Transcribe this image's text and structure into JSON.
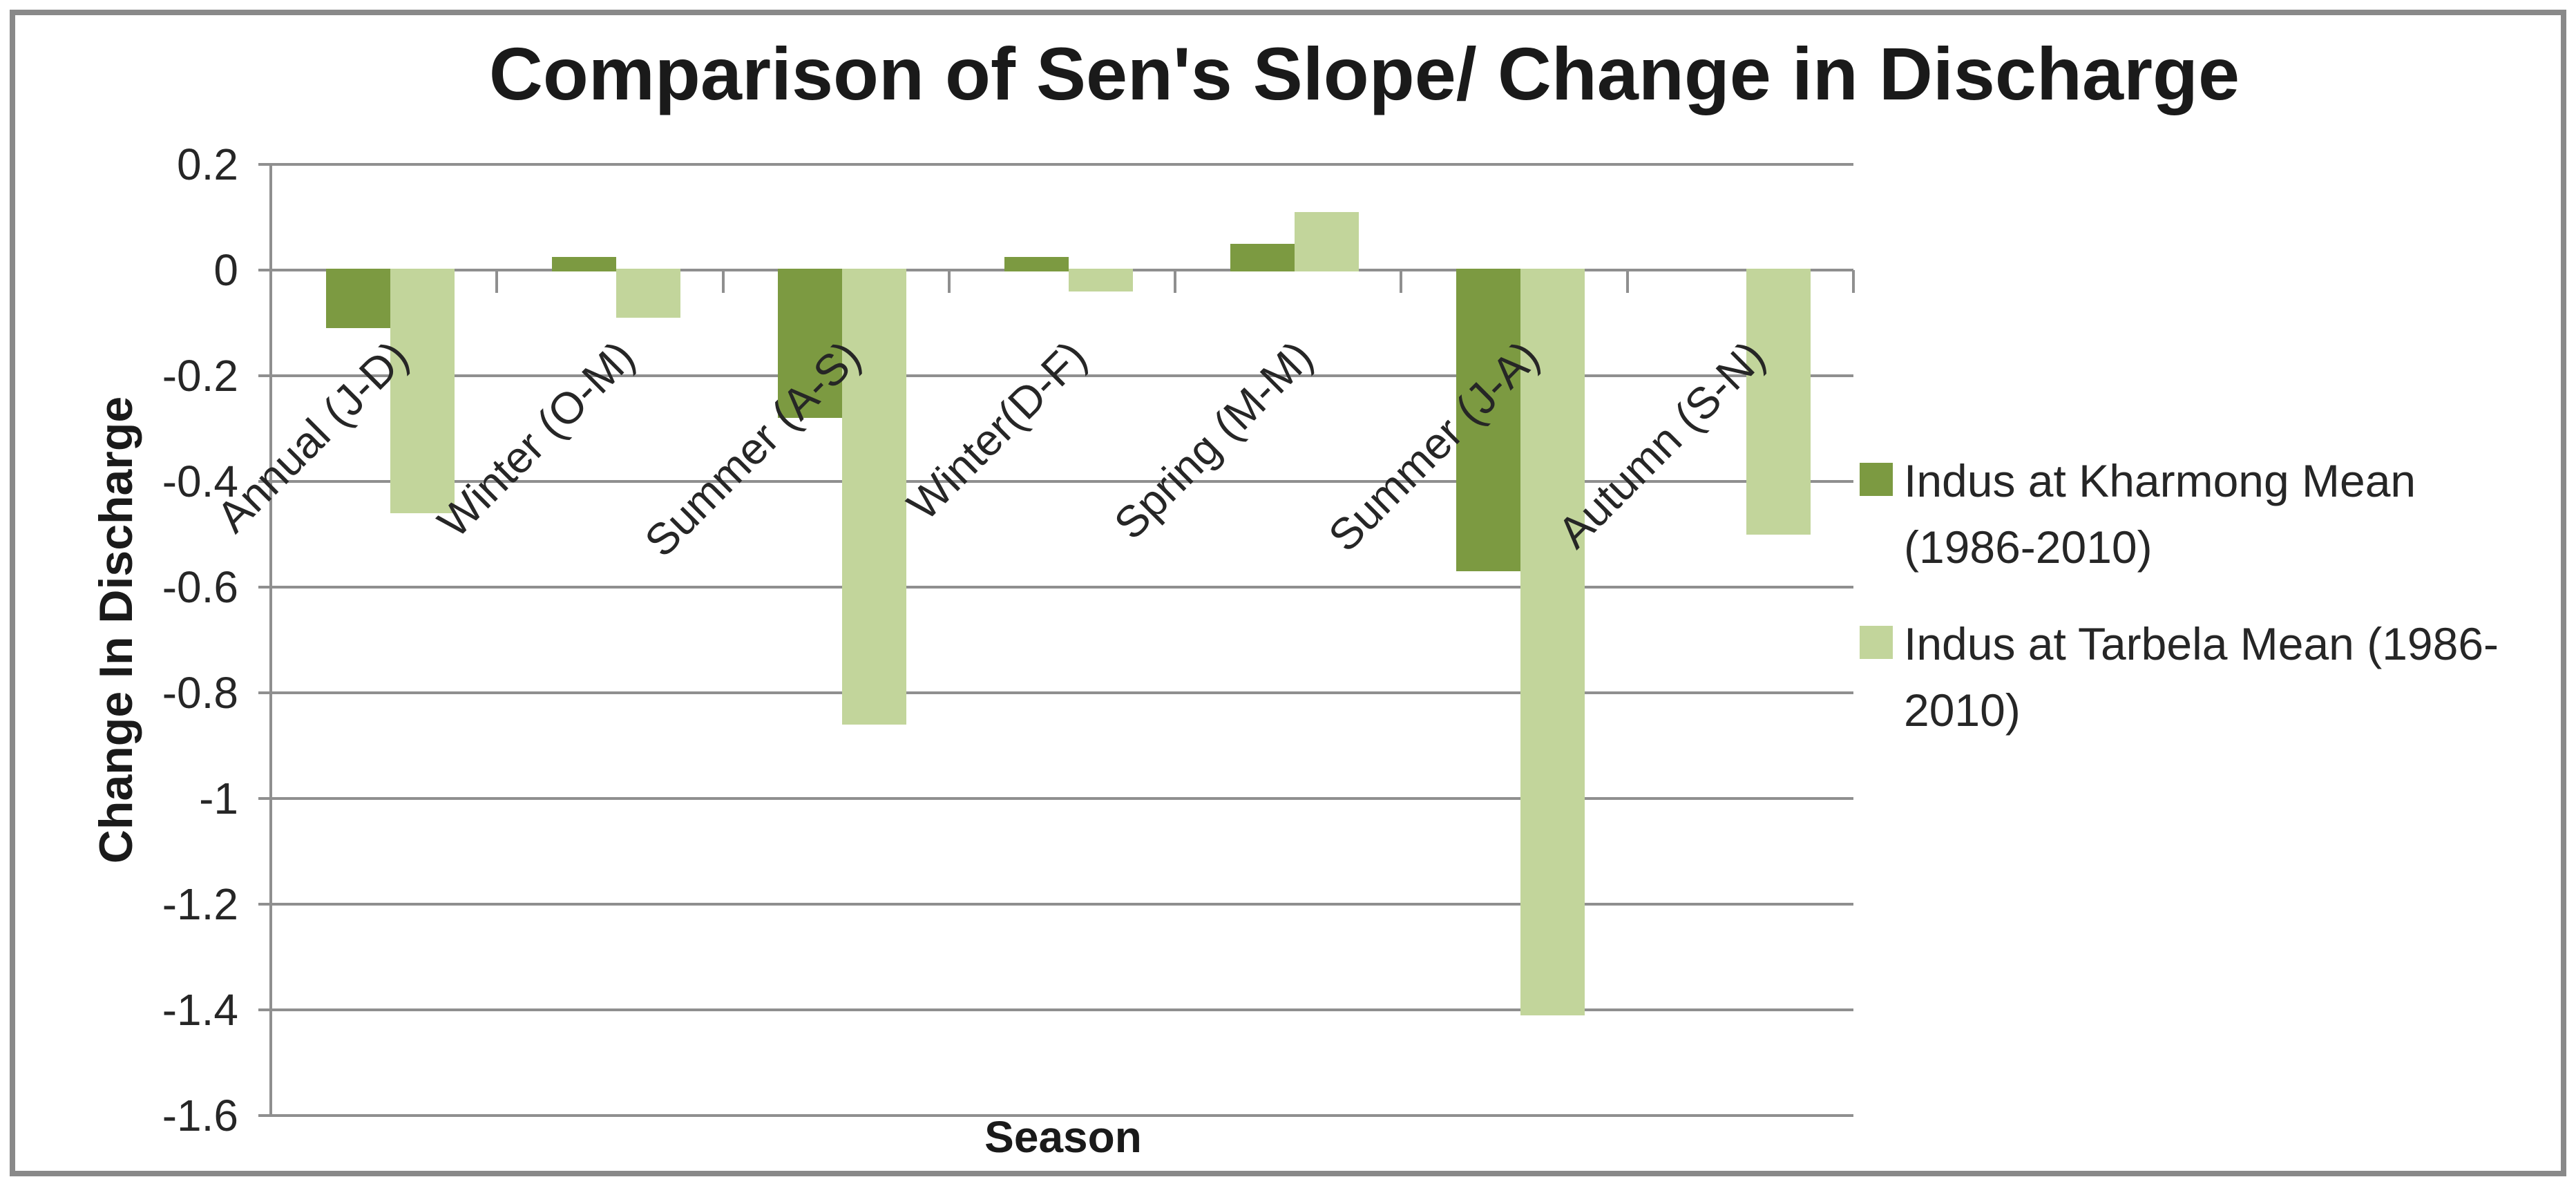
{
  "chart_data": {
    "type": "bar",
    "title": "Comparison of Sen's Slope/ Change in Discharge",
    "xlabel": "Season",
    "ylabel": "Change In Discharge",
    "categories": [
      "Annual (J-D)",
      "Winter (O-M)",
      "Summer (A-S)",
      "Winter(D-F)",
      "Spring (M-M)",
      "Summer (J-A)",
      "Autumn (S-N)"
    ],
    "series": [
      {
        "name": "Indus at Kharmong Mean (1986-2010)",
        "short_name": "kharmong",
        "color": "#7C9A41",
        "values": [
          -0.11,
          0.025,
          -0.28,
          0.025,
          0.05,
          -0.57,
          0
        ]
      },
      {
        "name": "Indus at Tarbela Mean (1986-2010)",
        "short_name": "tarbela",
        "color": "#C2D59B",
        "values": [
          -0.46,
          -0.09,
          -0.86,
          -0.04,
          0.11,
          -1.41,
          -0.5
        ]
      }
    ],
    "y_ticks": [
      {
        "label": "0.2",
        "value": 0.2
      },
      {
        "label": "0",
        "value": 0
      },
      {
        "label": "-0.2",
        "value": -0.2
      },
      {
        "label": "-0.4",
        "value": -0.4
      },
      {
        "label": "-0.6",
        "value": -0.6
      },
      {
        "label": "-0.8",
        "value": -0.8
      },
      {
        "label": "-1",
        "value": -1
      },
      {
        "label": "-1.2",
        "value": -1.2
      },
      {
        "label": "-1.4",
        "value": -1.4
      },
      {
        "label": "-1.6",
        "value": -1.6
      }
    ],
    "ylim": [
      -1.6,
      0.2
    ],
    "grid": true,
    "legend_position": "right",
    "colors": {
      "gridline": "#8f8f8f",
      "axis": "#8f8f8f",
      "text": "#262626",
      "frame_border": "#898989",
      "background": "#ffffff"
    }
  }
}
